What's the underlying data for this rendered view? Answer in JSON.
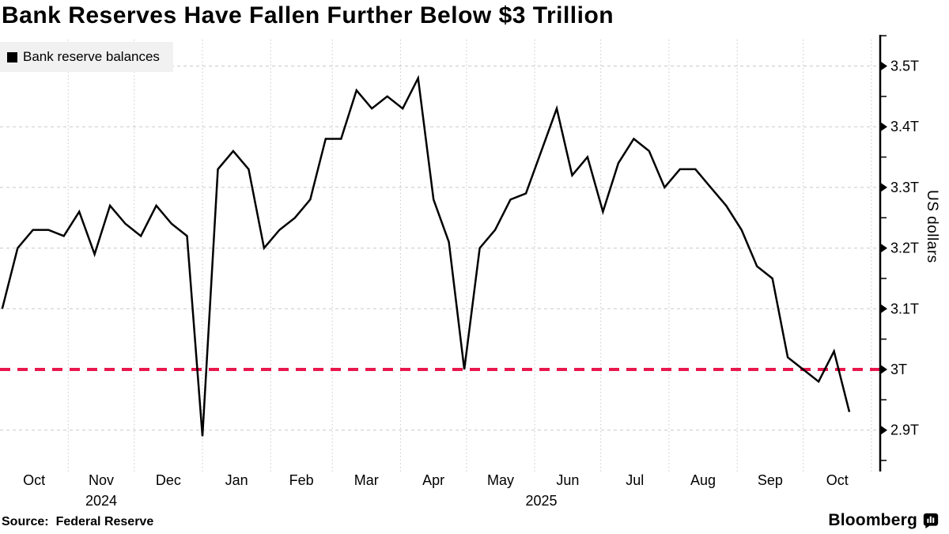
{
  "page": {
    "title": "Bank Reserves Have Fallen Further Below $3 Trillion"
  },
  "legend": {
    "label": "Bank reserve balances",
    "swatch_color": "#000000",
    "background": "#f1f1f1"
  },
  "source_line": {
    "prefix": "Source:",
    "text": "Federal Reserve"
  },
  "branding": {
    "wordmark": "Bloomberg",
    "logo_icon": "bloomberg-bubble-bars-icon"
  },
  "colors": {
    "series": "#000000",
    "reference": "#e8174d",
    "grid": "#c9c9c9",
    "axis": "#000000",
    "background": "#ffffff"
  },
  "chart_data": {
    "type": "line",
    "title": "Bank Reserves Have Fallen Further Below $3 Trillion",
    "ylabel": "US dollars",
    "ylim": [
      2.85,
      3.55
    ],
    "grid": true,
    "legend_position": "top-left",
    "x_range": [
      "2024-10-01",
      "2025-11-05"
    ],
    "y_ticks": [
      {
        "value": 3.5,
        "label": "3.5T"
      },
      {
        "value": 3.4,
        "label": "3.4T"
      },
      {
        "value": 3.3,
        "label": "3.3T"
      },
      {
        "value": 3.2,
        "label": "3.2T"
      },
      {
        "value": 3.1,
        "label": "3.1T"
      },
      {
        "value": 3.0,
        "label": "3T"
      },
      {
        "value": 2.9,
        "label": "2.9T"
      }
    ],
    "x_month_labels": [
      "Oct",
      "Nov",
      "Dec",
      "Jan",
      "Feb",
      "Mar",
      "Apr",
      "May",
      "Jun",
      "Jul",
      "Aug",
      "Sep",
      "Oct"
    ],
    "x_year_labels": [
      "2024",
      "2025"
    ],
    "reference_line": {
      "value": 3.0,
      "color": "#e8174d",
      "style": "dashed"
    },
    "series": [
      {
        "name": "Bank reserve balances",
        "color": "#000000",
        "unit": "trillion US dollars",
        "points": [
          {
            "date": "2024-10-02",
            "value": 3.1
          },
          {
            "date": "2024-10-09",
            "value": 3.2
          },
          {
            "date": "2024-10-16",
            "value": 3.23
          },
          {
            "date": "2024-10-23",
            "value": 3.23
          },
          {
            "date": "2024-10-30",
            "value": 3.22
          },
          {
            "date": "2024-11-06",
            "value": 3.26
          },
          {
            "date": "2024-11-13",
            "value": 3.19
          },
          {
            "date": "2024-11-20",
            "value": 3.27
          },
          {
            "date": "2024-11-27",
            "value": 3.24
          },
          {
            "date": "2024-12-04",
            "value": 3.22
          },
          {
            "date": "2024-12-11",
            "value": 3.27
          },
          {
            "date": "2024-12-18",
            "value": 3.24
          },
          {
            "date": "2024-12-25",
            "value": 3.22
          },
          {
            "date": "2025-01-01",
            "value": 2.89
          },
          {
            "date": "2025-01-08",
            "value": 3.33
          },
          {
            "date": "2025-01-15",
            "value": 3.36
          },
          {
            "date": "2025-01-22",
            "value": 3.33
          },
          {
            "date": "2025-01-29",
            "value": 3.2
          },
          {
            "date": "2025-02-05",
            "value": 3.23
          },
          {
            "date": "2025-02-12",
            "value": 3.25
          },
          {
            "date": "2025-02-19",
            "value": 3.28
          },
          {
            "date": "2025-02-26",
            "value": 3.38
          },
          {
            "date": "2025-03-05",
            "value": 3.38
          },
          {
            "date": "2025-03-12",
            "value": 3.46
          },
          {
            "date": "2025-03-19",
            "value": 3.43
          },
          {
            "date": "2025-03-26",
            "value": 3.45
          },
          {
            "date": "2025-04-02",
            "value": 3.43
          },
          {
            "date": "2025-04-09",
            "value": 3.48
          },
          {
            "date": "2025-04-16",
            "value": 3.28
          },
          {
            "date": "2025-04-23",
            "value": 3.21
          },
          {
            "date": "2025-04-30",
            "value": 3.0
          },
          {
            "date": "2025-05-07",
            "value": 3.2
          },
          {
            "date": "2025-05-14",
            "value": 3.23
          },
          {
            "date": "2025-05-21",
            "value": 3.28
          },
          {
            "date": "2025-05-28",
            "value": 3.29
          },
          {
            "date": "2025-06-04",
            "value": 3.36
          },
          {
            "date": "2025-06-11",
            "value": 3.43
          },
          {
            "date": "2025-06-18",
            "value": 3.32
          },
          {
            "date": "2025-06-25",
            "value": 3.35
          },
          {
            "date": "2025-07-02",
            "value": 3.26
          },
          {
            "date": "2025-07-09",
            "value": 3.34
          },
          {
            "date": "2025-07-16",
            "value": 3.38
          },
          {
            "date": "2025-07-23",
            "value": 3.36
          },
          {
            "date": "2025-07-30",
            "value": 3.3
          },
          {
            "date": "2025-08-06",
            "value": 3.33
          },
          {
            "date": "2025-08-13",
            "value": 3.33
          },
          {
            "date": "2025-08-20",
            "value": 3.3
          },
          {
            "date": "2025-08-27",
            "value": 3.27
          },
          {
            "date": "2025-09-03",
            "value": 3.23
          },
          {
            "date": "2025-09-10",
            "value": 3.17
          },
          {
            "date": "2025-09-17",
            "value": 3.15
          },
          {
            "date": "2025-09-24",
            "value": 3.02
          },
          {
            "date": "2025-10-01",
            "value": 3.0
          },
          {
            "date": "2025-10-08",
            "value": 2.98
          },
          {
            "date": "2025-10-15",
            "value": 3.03
          },
          {
            "date": "2025-10-22",
            "value": 2.93
          }
        ]
      }
    ]
  }
}
